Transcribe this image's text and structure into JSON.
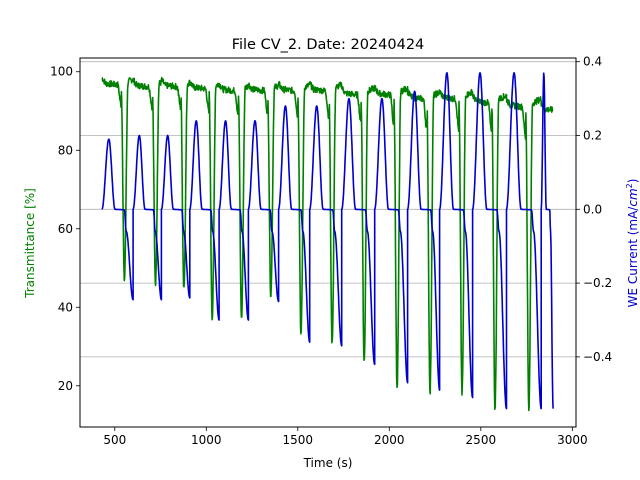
{
  "chart_data": {
    "type": "line",
    "title": "File CV_2. Date: 20240424",
    "xlabel": "Time (s)",
    "ylabel_left": "Transmittance [%]",
    "ylabel_right_prefix": "WE Current (mA/",
    "ylabel_right_italic": "cm",
    "ylabel_right_sup": "2",
    "ylabel_right_suffix": ")",
    "colors": {
      "left": "#008000",
      "right": "#0000cc"
    },
    "xlim": [
      310,
      3020
    ],
    "ylim_left": [
      9.5,
      103.5
    ],
    "ylim_right": [
      -0.59,
      0.41
    ],
    "xticks": [
      500,
      1000,
      1500,
      2000,
      2500,
      3000
    ],
    "yticks_left": [
      20,
      40,
      60,
      80,
      100
    ],
    "yticks_right": [
      -0.4,
      -0.2,
      0.0,
      0.2,
      0.4
    ],
    "ytick_labels_right": [
      "−0.4",
      "−0.2",
      "0.0",
      "0.2",
      "0.4"
    ],
    "grid": "right-axis horizontal",
    "x_start": 430,
    "x_end": 2895,
    "cycles": [
      {
        "start": 430,
        "period": 170,
        "t_max": 98.5,
        "t_min": 47,
        "i_min": -0.245,
        "i_max": 0.19
      },
      {
        "start": 600,
        "period": 155,
        "t_max": 98,
        "t_min": 46,
        "i_min": -0.245,
        "i_max": 0.2
      },
      {
        "start": 755,
        "period": 155,
        "t_max": 98,
        "t_min": 45,
        "i_min": -0.24,
        "i_max": 0.2
      },
      {
        "start": 910,
        "period": 160,
        "t_max": 97.5,
        "t_min": 37,
        "i_min": -0.3,
        "i_max": 0.24
      },
      {
        "start": 1070,
        "period": 160,
        "t_max": 97,
        "t_min": 37,
        "i_min": -0.3,
        "i_max": 0.24
      },
      {
        "start": 1230,
        "period": 165,
        "t_max": 97,
        "t_min": 43,
        "i_min": -0.25,
        "i_max": 0.24
      },
      {
        "start": 1395,
        "period": 170,
        "t_max": 97,
        "t_min": 33,
        "i_min": -0.36,
        "i_max": 0.28
      },
      {
        "start": 1565,
        "period": 175,
        "t_max": 97,
        "t_min": 31,
        "i_min": -0.37,
        "i_max": 0.28
      },
      {
        "start": 1740,
        "period": 180,
        "t_max": 96,
        "t_min": 26,
        "i_min": -0.42,
        "i_max": 0.3
      },
      {
        "start": 1920,
        "period": 180,
        "t_max": 96,
        "t_min": 19,
        "i_min": -0.47,
        "i_max": 0.3
      },
      {
        "start": 2100,
        "period": 175,
        "t_max": 95,
        "t_min": 18,
        "i_min": -0.49,
        "i_max": 0.32
      },
      {
        "start": 2275,
        "period": 180,
        "t_max": 95,
        "t_min": 18,
        "i_min": -0.51,
        "i_max": 0.37
      },
      {
        "start": 2455,
        "period": 185,
        "t_max": 94,
        "t_min": 14,
        "i_min": -0.54,
        "i_max": 0.37
      },
      {
        "start": 2640,
        "period": 190,
        "t_max": 93,
        "t_min": 14,
        "i_min": -0.54,
        "i_max": 0.37
      },
      {
        "start": 2830,
        "period": 65,
        "t_max": 92,
        "t_min": 14,
        "i_min": -0.54,
        "i_max": 0.37
      }
    ]
  }
}
